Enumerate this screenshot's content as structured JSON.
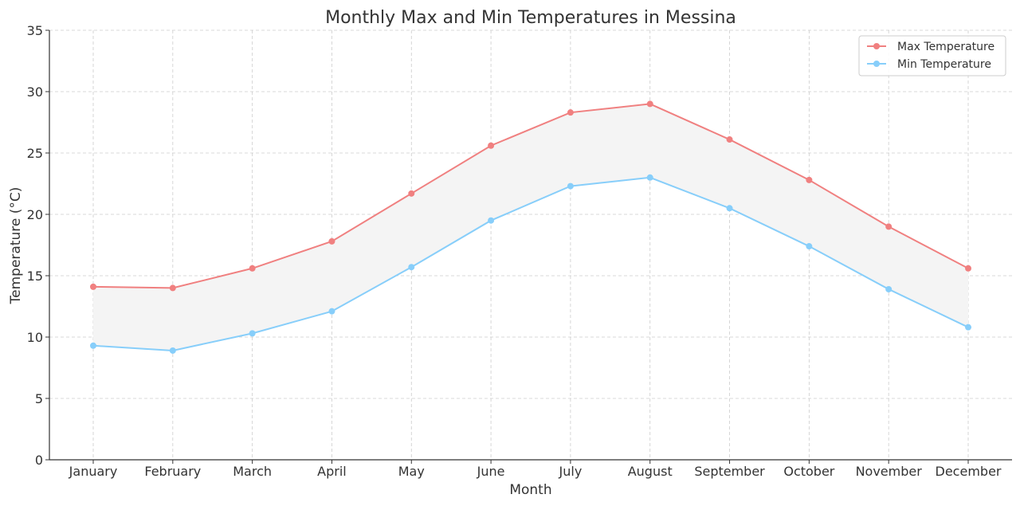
{
  "chart_data": {
    "type": "line",
    "title": "Monthly Max and Min Temperatures in Messina",
    "xlabel": "Month",
    "ylabel": "Temperature (°C)",
    "categories": [
      "January",
      "February",
      "March",
      "April",
      "May",
      "June",
      "July",
      "August",
      "September",
      "October",
      "November",
      "December"
    ],
    "ylim": [
      0,
      35
    ],
    "yticks": [
      0,
      5,
      10,
      15,
      20,
      25,
      30,
      35
    ],
    "grid": true,
    "legend": "top-right",
    "fill_between": {
      "color": "#f4f4f4"
    },
    "series": [
      {
        "name": "Max Temperature",
        "color": "#f08080",
        "values": [
          14.1,
          14.0,
          15.6,
          17.8,
          21.7,
          25.6,
          28.3,
          29.0,
          26.1,
          22.8,
          19.0,
          15.6
        ]
      },
      {
        "name": "Min Temperature",
        "color": "#87cefa",
        "values": [
          9.3,
          8.9,
          10.3,
          12.1,
          15.7,
          19.5,
          22.3,
          23.0,
          20.5,
          17.4,
          13.9,
          10.8
        ]
      }
    ]
  }
}
